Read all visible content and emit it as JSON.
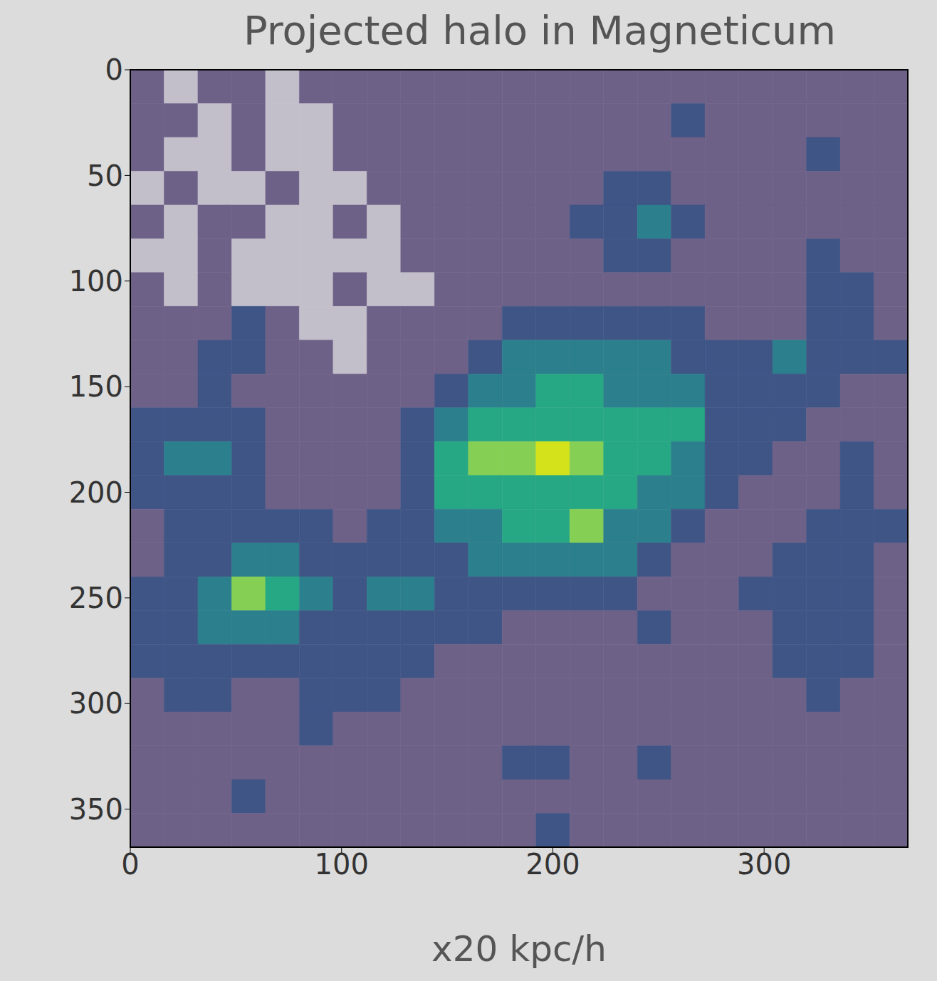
{
  "chart_data": {
    "type": "heatmap",
    "title": "Projected halo in Magneticum",
    "x_label": "x20 kpc/h",
    "xlim": [
      0,
      368
    ],
    "ylim": [
      0,
      368
    ],
    "xticks": [
      0,
      100,
      200,
      300
    ],
    "yticks": [
      0,
      50,
      100,
      150,
      200,
      250,
      300,
      350
    ],
    "x_edges": [
      0,
      16,
      32,
      48,
      64,
      80,
      96,
      112,
      128,
      144,
      160,
      176,
      192,
      208,
      224,
      240,
      256,
      272,
      288,
      304,
      320,
      336,
      352,
      368
    ],
    "y_edges": [
      0,
      16,
      32,
      48,
      64,
      80,
      96,
      112,
      128,
      144,
      160,
      176,
      192,
      208,
      224,
      240,
      256,
      272,
      288,
      304,
      320,
      336,
      352,
      368
    ],
    "cells": [
      [
        1,
        0,
        1,
        1,
        0,
        1,
        1,
        1,
        1,
        1,
        1,
        1,
        1,
        1,
        1,
        1,
        1,
        1,
        1,
        1,
        1,
        1,
        1
      ],
      [
        1,
        1,
        0,
        1,
        0,
        0,
        1,
        1,
        1,
        1,
        1,
        1,
        1,
        1,
        1,
        1,
        2,
        1,
        1,
        1,
        1,
        1,
        1
      ],
      [
        1,
        0,
        0,
        1,
        0,
        0,
        1,
        1,
        1,
        1,
        1,
        1,
        1,
        1,
        1,
        1,
        1,
        1,
        1,
        1,
        2,
        1,
        1
      ],
      [
        0,
        1,
        0,
        0,
        1,
        0,
        0,
        1,
        1,
        1,
        1,
        1,
        1,
        1,
        2,
        2,
        1,
        1,
        1,
        1,
        1,
        1,
        1
      ],
      [
        1,
        0,
        1,
        1,
        0,
        0,
        1,
        0,
        1,
        1,
        1,
        1,
        1,
        2,
        2,
        3,
        2,
        1,
        1,
        1,
        1,
        1,
        1
      ],
      [
        0,
        0,
        1,
        0,
        0,
        0,
        0,
        0,
        1,
        1,
        1,
        1,
        1,
        1,
        2,
        2,
        1,
        1,
        1,
        1,
        2,
        1,
        1
      ],
      [
        1,
        0,
        1,
        0,
        0,
        0,
        1,
        0,
        0,
        1,
        1,
        1,
        1,
        1,
        1,
        1,
        1,
        1,
        1,
        1,
        2,
        2,
        1
      ],
      [
        1,
        1,
        1,
        2,
        1,
        0,
        0,
        1,
        1,
        1,
        1,
        2,
        2,
        2,
        2,
        2,
        2,
        1,
        1,
        1,
        2,
        2,
        1
      ],
      [
        1,
        1,
        2,
        2,
        1,
        1,
        0,
        1,
        1,
        1,
        2,
        3,
        3,
        3,
        3,
        3,
        2,
        2,
        2,
        3,
        2,
        2,
        2
      ],
      [
        1,
        1,
        2,
        1,
        1,
        1,
        1,
        1,
        1,
        2,
        3,
        3,
        4,
        4,
        3,
        3,
        3,
        2,
        2,
        2,
        2,
        1,
        1
      ],
      [
        2,
        2,
        2,
        2,
        1,
        1,
        1,
        1,
        2,
        3,
        4,
        4,
        4,
        4,
        4,
        4,
        4,
        2,
        2,
        2,
        1,
        1,
        1
      ],
      [
        2,
        3,
        3,
        2,
        1,
        1,
        1,
        1,
        2,
        4,
        5,
        5,
        6,
        5,
        4,
        4,
        3,
        2,
        2,
        1,
        1,
        2,
        1
      ],
      [
        2,
        2,
        2,
        2,
        1,
        1,
        1,
        1,
        2,
        4,
        4,
        4,
        4,
        4,
        4,
        3,
        3,
        2,
        1,
        1,
        1,
        2,
        1
      ],
      [
        1,
        2,
        2,
        2,
        2,
        2,
        1,
        2,
        2,
        3,
        3,
        4,
        4,
        5,
        3,
        3,
        2,
        1,
        1,
        1,
        2,
        2,
        2
      ],
      [
        1,
        2,
        2,
        3,
        3,
        2,
        2,
        2,
        2,
        2,
        3,
        3,
        3,
        3,
        3,
        2,
        1,
        1,
        1,
        2,
        2,
        2,
        1
      ],
      [
        2,
        2,
        3,
        5,
        4,
        3,
        2,
        3,
        3,
        2,
        2,
        2,
        2,
        2,
        2,
        1,
        1,
        1,
        2,
        2,
        2,
        2,
        1
      ],
      [
        2,
        2,
        3,
        3,
        3,
        2,
        2,
        2,
        2,
        2,
        2,
        1,
        1,
        1,
        1,
        2,
        1,
        1,
        1,
        2,
        2,
        2,
        1
      ],
      [
        2,
        2,
        2,
        2,
        2,
        2,
        2,
        2,
        2,
        1,
        1,
        1,
        1,
        1,
        1,
        1,
        1,
        1,
        1,
        2,
        2,
        2,
        1
      ],
      [
        1,
        2,
        2,
        1,
        1,
        2,
        2,
        2,
        1,
        1,
        1,
        1,
        1,
        1,
        1,
        1,
        1,
        1,
        1,
        1,
        2,
        1,
        1
      ],
      [
        1,
        1,
        1,
        1,
        1,
        2,
        1,
        1,
        1,
        1,
        1,
        1,
        1,
        1,
        1,
        1,
        1,
        1,
        1,
        1,
        1,
        1,
        1
      ],
      [
        1,
        1,
        1,
        1,
        1,
        1,
        1,
        1,
        1,
        1,
        1,
        2,
        2,
        1,
        1,
        2,
        1,
        1,
        1,
        1,
        1,
        1,
        1
      ],
      [
        1,
        1,
        1,
        2,
        1,
        1,
        1,
        1,
        1,
        1,
        1,
        1,
        1,
        1,
        1,
        1,
        1,
        1,
        1,
        1,
        1,
        1,
        1
      ],
      [
        1,
        1,
        1,
        1,
        1,
        1,
        1,
        1,
        1,
        1,
        1,
        1,
        2,
        1,
        1,
        1,
        1,
        1,
        1,
        1,
        1,
        1,
        1
      ]
    ]
  }
}
